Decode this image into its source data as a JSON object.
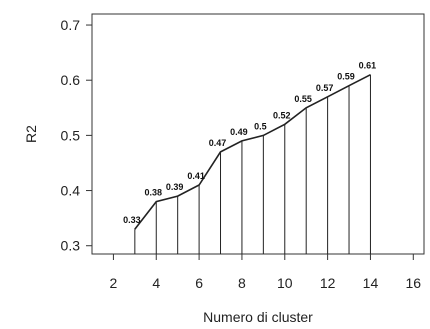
{
  "chart_data": {
    "type": "line",
    "title": "",
    "xlabel": "Numero di cluster",
    "ylabel": "R2",
    "xlim": [
      1,
      16.5
    ],
    "ylim": [
      0.285,
      0.72
    ],
    "xticks": [
      2,
      4,
      6,
      8,
      10,
      12,
      14,
      16
    ],
    "yticks": [
      0.3,
      0.4,
      0.5,
      0.6,
      0.7
    ],
    "ytick_labels": [
      "0.3",
      "0.4",
      "0.5",
      "0.6",
      "0.7"
    ],
    "grid": false,
    "series": [
      {
        "x": [
          3,
          4,
          5,
          6,
          7,
          8,
          9,
          10,
          11,
          12,
          13,
          14
        ],
        "values": [
          0.33,
          0.38,
          0.39,
          0.41,
          0.47,
          0.49,
          0.5,
          0.52,
          0.55,
          0.57,
          0.59,
          0.61
        ],
        "labels": [
          "0.33",
          "0.38",
          "0.39",
          "0.41",
          "0.47",
          "0.49",
          "0.5",
          "0.52",
          "0.55",
          "0.57",
          "0.59",
          "0.61"
        ]
      }
    ],
    "colors": {
      "line": "#222222",
      "axis": "#333333"
    }
  }
}
